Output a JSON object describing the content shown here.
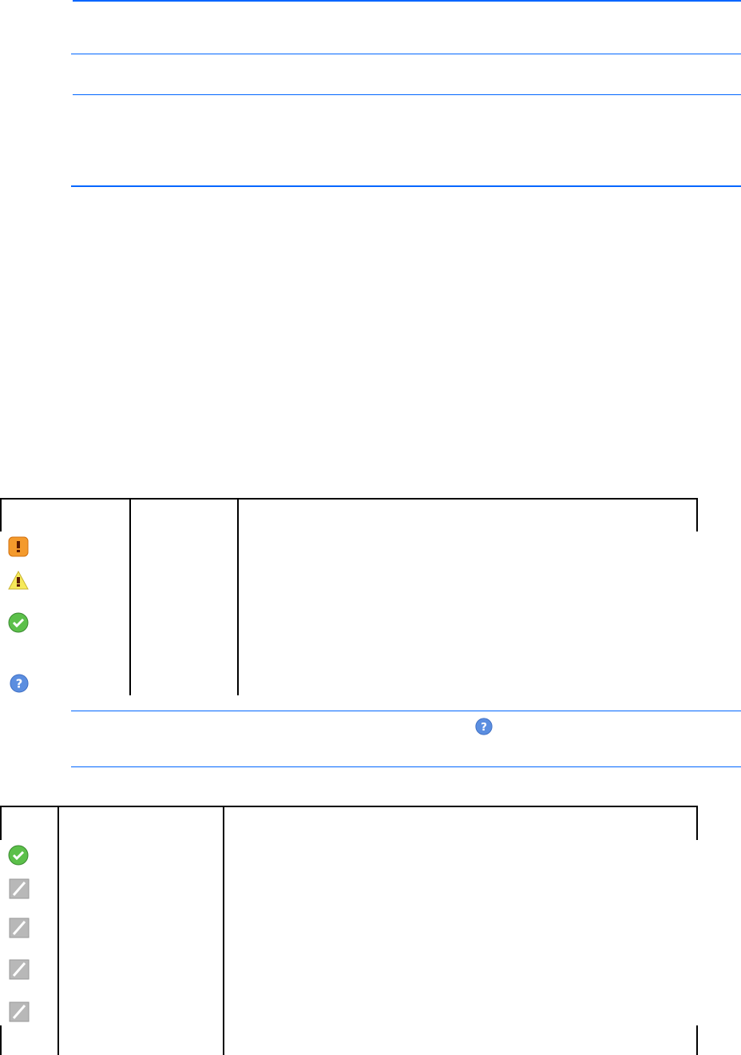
{
  "colors": {
    "rule": "#0066ff",
    "table_border": "#000000"
  },
  "table1": {
    "row_icons": [
      "error-icon",
      "warning-icon",
      "ok-icon",
      "help-icon"
    ]
  },
  "note": {
    "inline_icon": "help-icon"
  },
  "table2": {
    "row_icons": [
      "ok-icon",
      "disabled-icon",
      "disabled-icon",
      "disabled-icon",
      "disabled-icon"
    ]
  }
}
